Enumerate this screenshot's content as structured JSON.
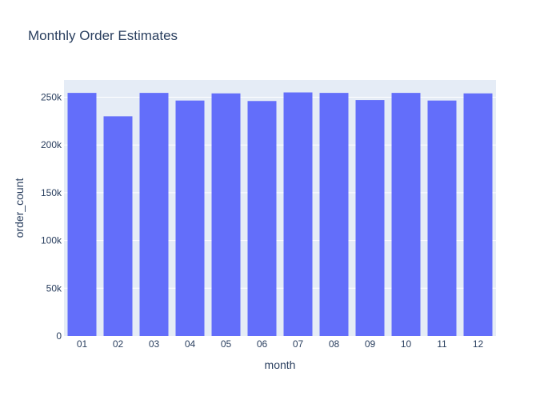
{
  "chart_data": {
    "type": "bar",
    "title": "Monthly Order Estimates",
    "xlabel": "month",
    "ylabel": "order_count",
    "categories": [
      "01",
      "02",
      "03",
      "04",
      "05",
      "06",
      "07",
      "08",
      "09",
      "10",
      "11",
      "12"
    ],
    "values": [
      254500,
      230000,
      254500,
      246500,
      254000,
      246000,
      255000,
      254500,
      247000,
      254500,
      246500,
      254000
    ],
    "ylim": [
      0,
      268000
    ],
    "yticks": [
      0,
      50000,
      100000,
      150000,
      200000,
      250000
    ],
    "ytick_labels": [
      "0",
      "50k",
      "100k",
      "150k",
      "200k",
      "250k"
    ],
    "grid": true,
    "colors": {
      "bar": "#636efa",
      "plot_bg": "#e5ecf6",
      "grid": "#ffffff",
      "text": "#2a3f5f"
    }
  }
}
